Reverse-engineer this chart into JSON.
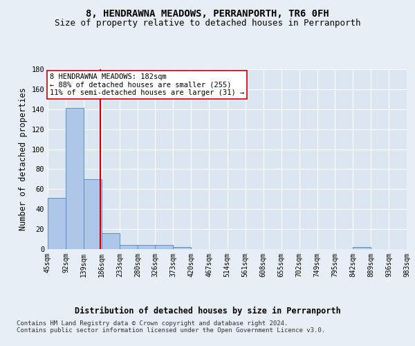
{
  "title_line1": "8, HENDRAWNA MEADOWS, PERRANPORTH, TR6 0FH",
  "title_line2": "Size of property relative to detached houses in Perranporth",
  "xlabel": "Distribution of detached houses by size in Perranporth",
  "ylabel": "Number of detached properties",
  "bar_values": [
    51,
    141,
    70,
    16,
    4,
    4,
    4,
    2,
    0,
    0,
    0,
    0,
    0,
    0,
    0,
    0,
    0,
    2,
    0,
    0
  ],
  "bin_edges": [
    45,
    92,
    139,
    186,
    233,
    280,
    326,
    373,
    420,
    467,
    514,
    561,
    608,
    655,
    702,
    749,
    795,
    842,
    889,
    936,
    983
  ],
  "tick_labels": [
    "45sqm",
    "92sqm",
    "139sqm",
    "186sqm",
    "233sqm",
    "280sqm",
    "326sqm",
    "373sqm",
    "420sqm",
    "467sqm",
    "514sqm",
    "561sqm",
    "608sqm",
    "655sqm",
    "702sqm",
    "749sqm",
    "795sqm",
    "842sqm",
    "889sqm",
    "936sqm",
    "983sqm"
  ],
  "bar_color": "#aec6e8",
  "bar_edge_color": "#5b8fc9",
  "property_line_x": 182,
  "property_line_color": "#cc0000",
  "annotation_text": "8 HENDRAWNA MEADOWS: 182sqm\n← 88% of detached houses are smaller (255)\n11% of semi-detached houses are larger (31) →",
  "annotation_box_color": "#ffffff",
  "annotation_box_edge_color": "#cc0000",
  "ylim": [
    0,
    180
  ],
  "yticks": [
    0,
    20,
    40,
    60,
    80,
    100,
    120,
    140,
    160,
    180
  ],
  "background_color": "#e8eef5",
  "plot_bg_color": "#dce6f1",
  "footer_text": "Contains HM Land Registry data © Crown copyright and database right 2024.\nContains public sector information licensed under the Open Government Licence v3.0.",
  "title_fontsize": 10,
  "subtitle_fontsize": 9,
  "axis_label_fontsize": 8.5,
  "tick_fontsize": 7,
  "annotation_fontsize": 7.5,
  "footer_fontsize": 6.5
}
